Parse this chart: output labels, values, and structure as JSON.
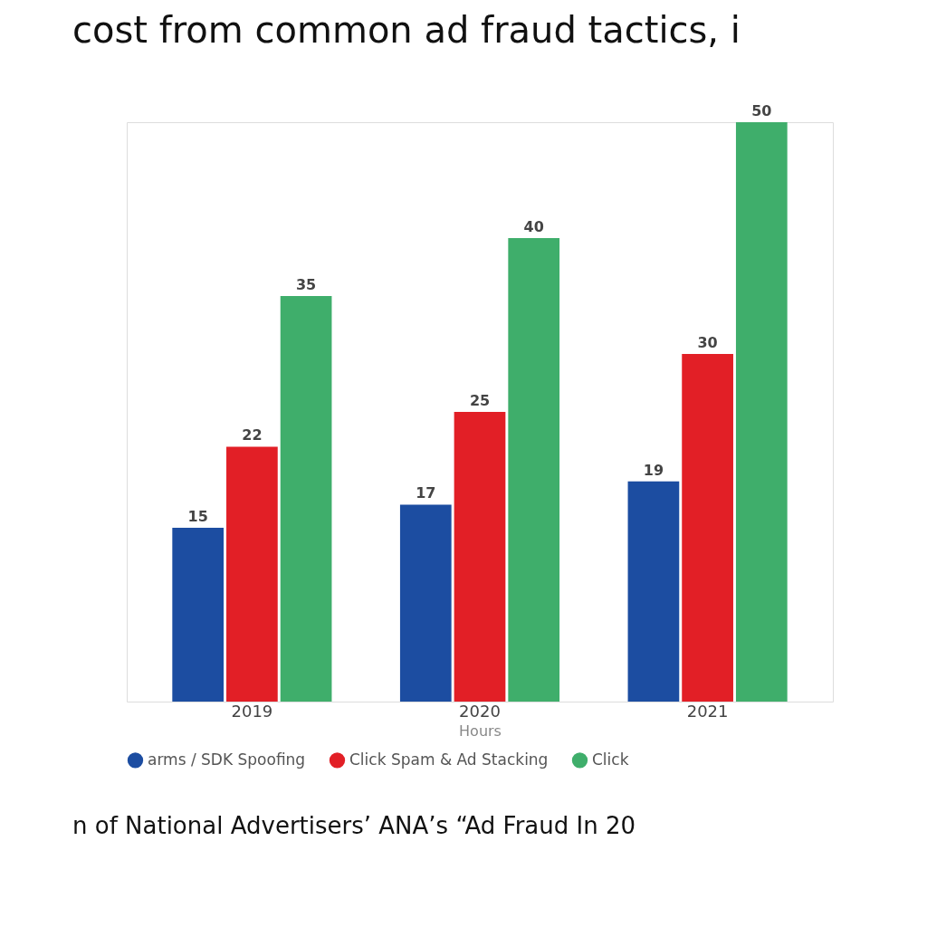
{
  "chart_data": {
    "type": "bar",
    "title": "cost from common ad fraud tactics, i",
    "xlabel": "Hours",
    "categories": [
      "2019",
      "2020",
      "2021"
    ],
    "series": [
      {
        "name": "arms / SDK Spoofing",
        "color": "#1c4da1",
        "values": [
          15,
          17,
          19
        ]
      },
      {
        "name": "Click Spam & Ad Stacking",
        "color": "#e21f26",
        "values": [
          22,
          25,
          30
        ]
      },
      {
        "name": "Click",
        "color": "#3fae6b",
        "values": [
          35,
          40,
          50
        ]
      }
    ],
    "data_labels": true,
    "grid": false,
    "legend": "bottom",
    "annotations": [
      "n of National Advertisers’ ANA’s “Ad Fraud In 20"
    ]
  }
}
